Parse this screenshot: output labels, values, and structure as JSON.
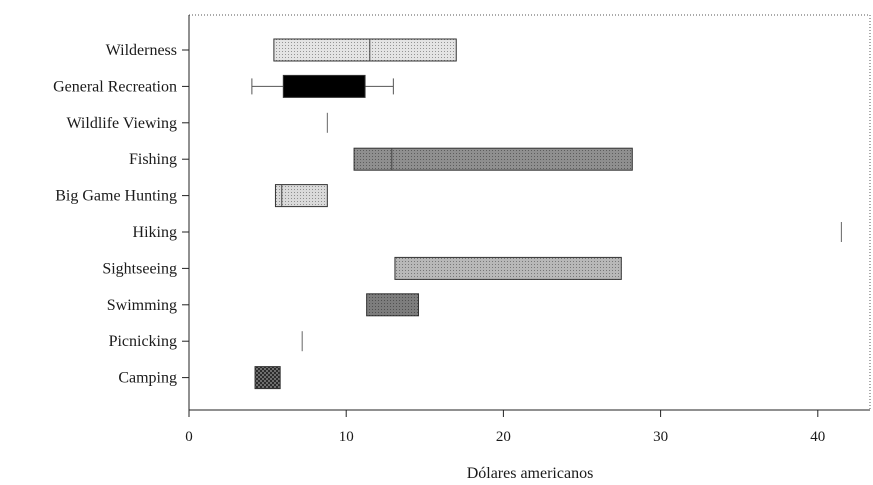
{
  "chart_data": {
    "type": "boxplot",
    "title": "",
    "xlabel": "Dólares americanos",
    "ylabel": "",
    "xlim": [
      0,
      44
    ],
    "xticks": [
      0,
      10,
      20,
      30,
      40
    ],
    "grid": false,
    "legend": "none",
    "categories": [
      "Wilderness",
      "General Recreation",
      "Wildlife Viewing",
      "Fishing",
      "Big Game Hunting",
      "Hiking",
      "Sightseeing",
      "Swimming",
      "Picnicking",
      "Camping"
    ],
    "boxes": [
      {
        "category": "Wilderness",
        "min": 5.4,
        "q1": 5.4,
        "median": 11.5,
        "q3": 17.0,
        "max": 17.0,
        "fill": "#e4e4e4",
        "pattern": "dots"
      },
      {
        "category": "General Recreation",
        "min": 4.0,
        "q1": 6.0,
        "median": 11.2,
        "q3": 11.2,
        "max": 13.0,
        "fill": "#000000",
        "pattern": "solid"
      },
      {
        "category": "Wildlife Viewing",
        "min": 8.8,
        "q1": 8.8,
        "median": 8.8,
        "q3": 8.8,
        "max": 8.8,
        "fill": "#ffffff",
        "pattern": "line"
      },
      {
        "category": "Fishing",
        "min": 10.5,
        "q1": 10.5,
        "median": 12.9,
        "q3": 28.2,
        "max": 28.2,
        "fill": "#8f8f8f",
        "pattern": "dots"
      },
      {
        "category": "Big Game Hunting",
        "min": 5.5,
        "q1": 5.5,
        "median": 5.9,
        "q3": 8.8,
        "max": 8.8,
        "fill": "#dadada",
        "pattern": "dots"
      },
      {
        "category": "Hiking",
        "min": 41.5,
        "q1": 41.5,
        "median": 41.5,
        "q3": 41.5,
        "max": 41.5,
        "fill": "#ffffff",
        "pattern": "line"
      },
      {
        "category": "Sightseeing",
        "min": 13.1,
        "q1": 13.1,
        "median": 13.1,
        "q3": 27.5,
        "max": 27.5,
        "fill": "#b8b8b8",
        "pattern": "dots"
      },
      {
        "category": "Swimming",
        "min": 11.3,
        "q1": 11.3,
        "median": 11.3,
        "q3": 14.6,
        "max": 14.6,
        "fill": "#7d7d7d",
        "pattern": "dots"
      },
      {
        "category": "Picnicking",
        "min": 7.2,
        "q1": 7.2,
        "median": 7.2,
        "q3": 7.2,
        "max": 7.2,
        "fill": "#ffffff",
        "pattern": "line"
      },
      {
        "category": "Camping",
        "min": 4.2,
        "q1": 4.2,
        "median": 4.2,
        "q3": 5.8,
        "max": 5.8,
        "fill": "#3a3a3a",
        "pattern": "checker"
      }
    ]
  }
}
